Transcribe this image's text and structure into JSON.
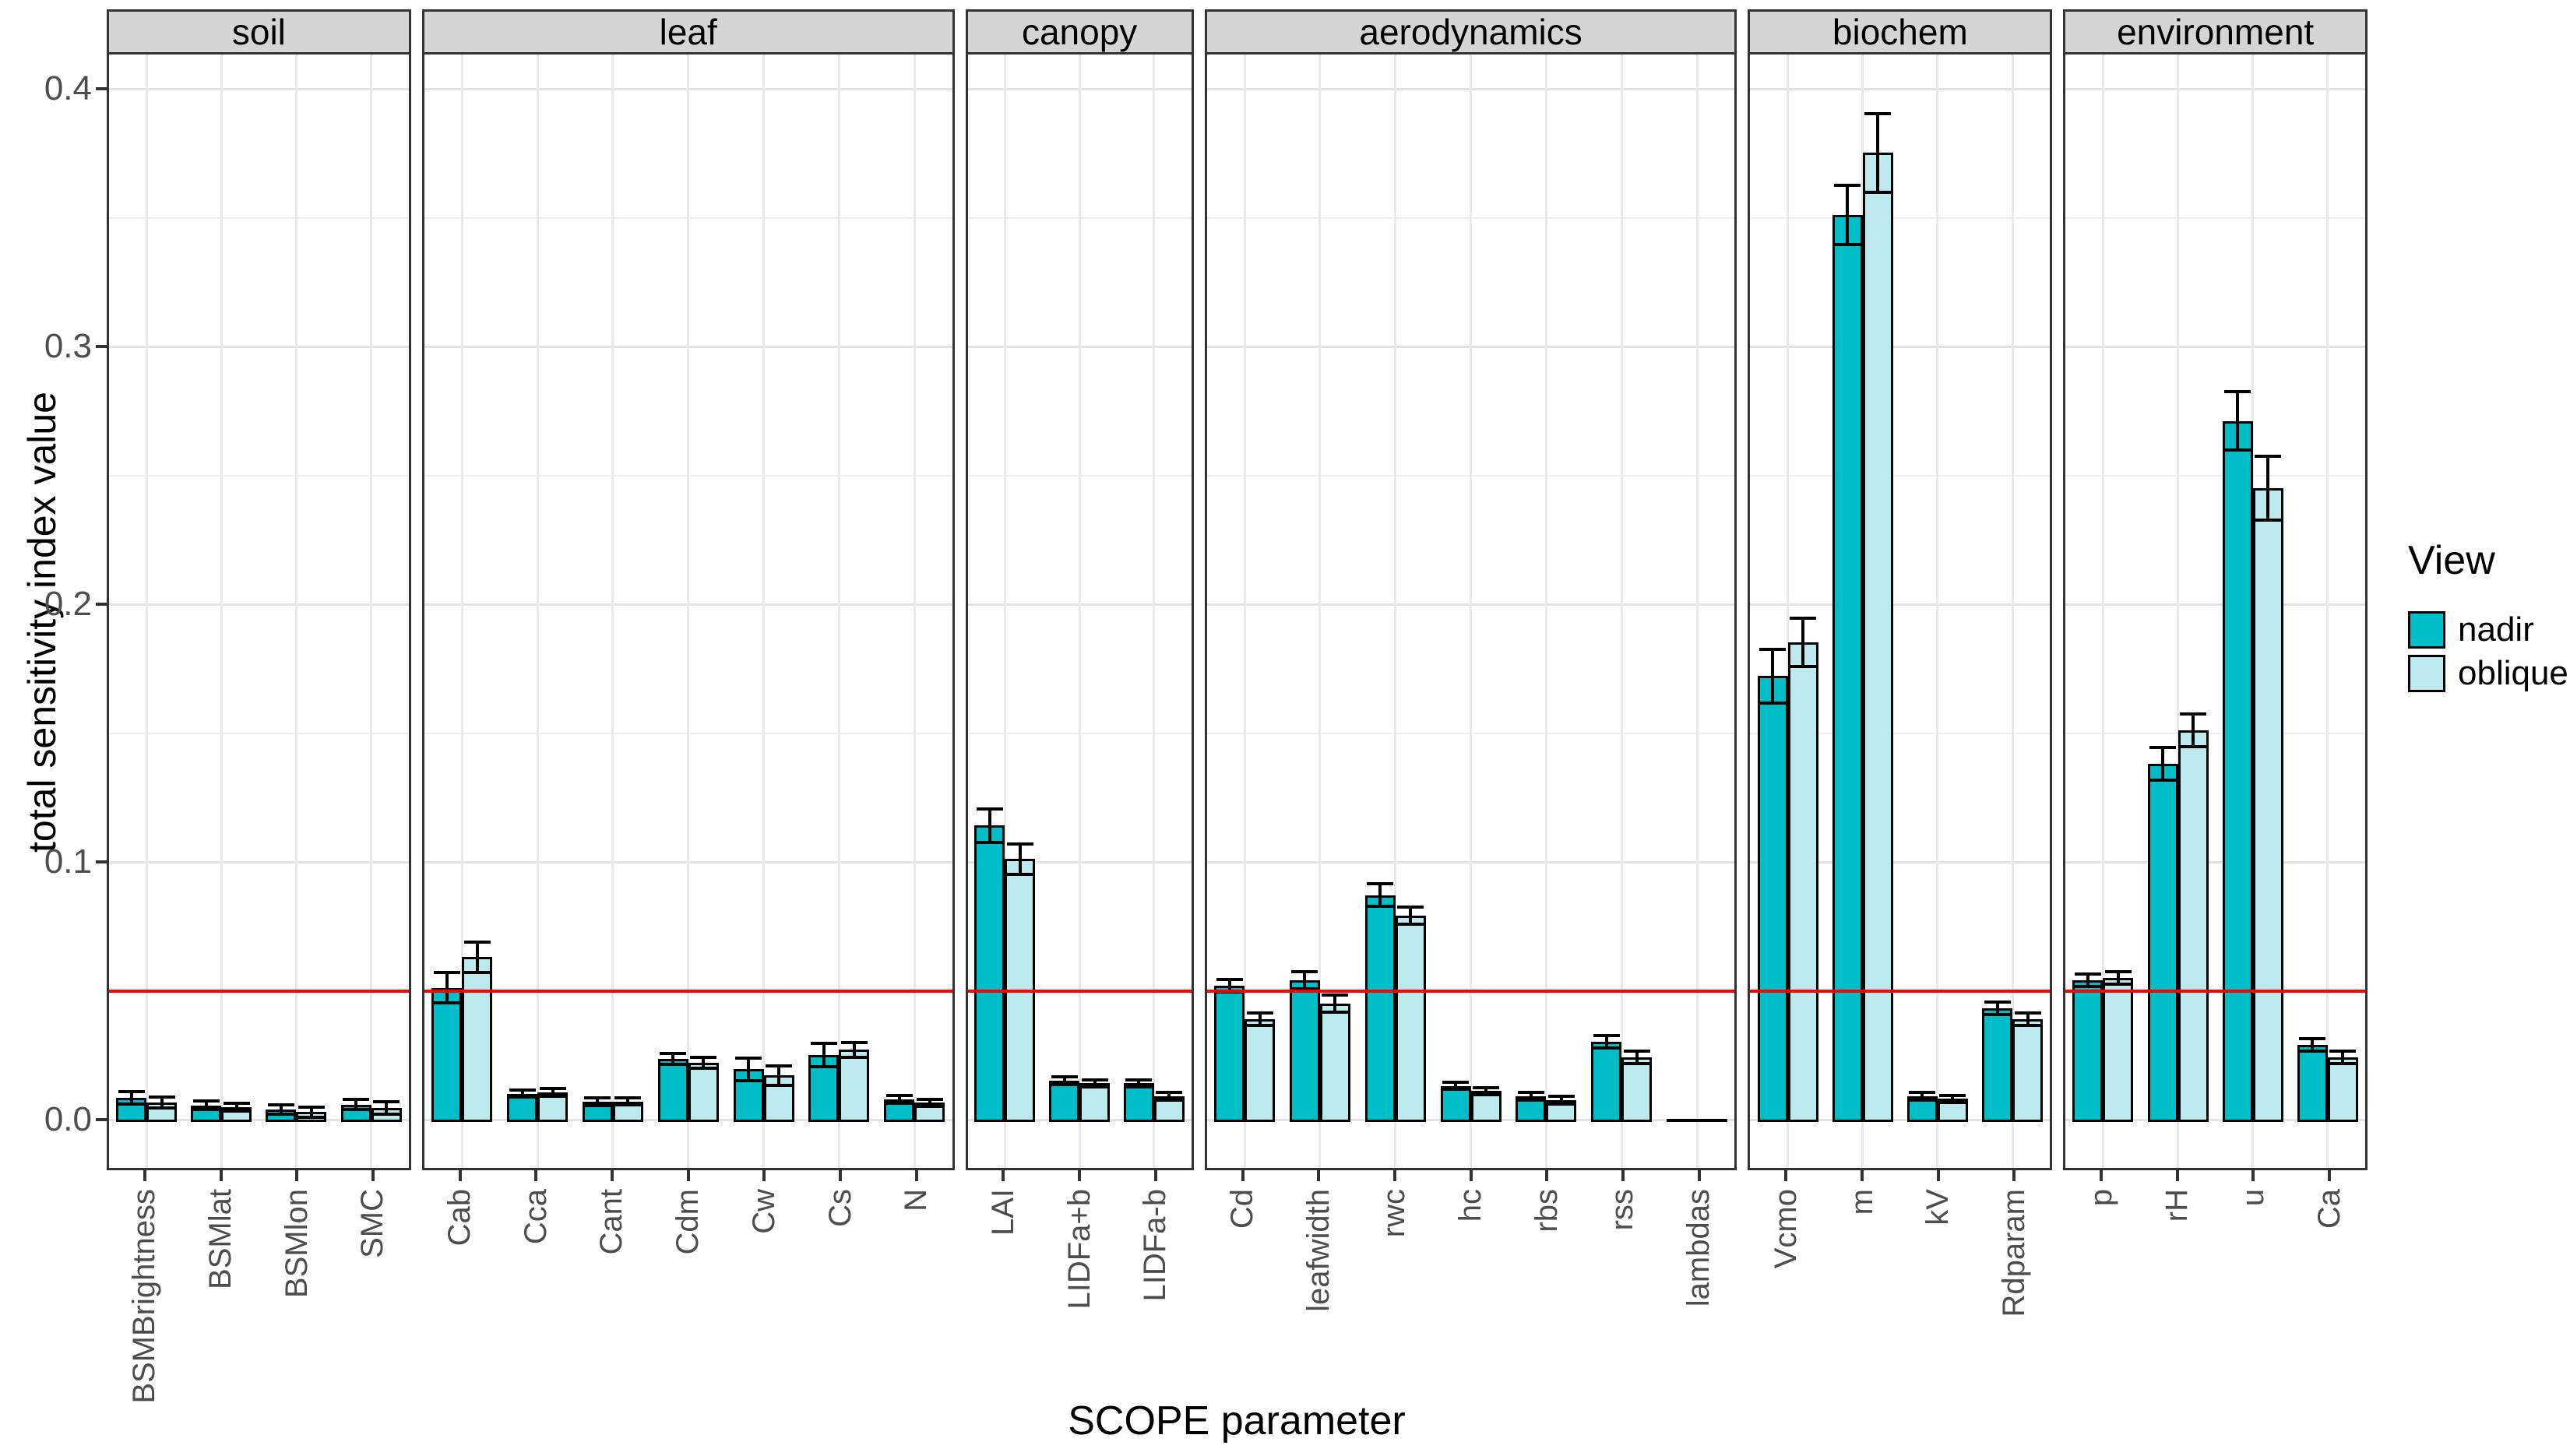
{
  "title_x": "SCOPE parameter",
  "title_y": "total sensitivity index value",
  "legend": {
    "title": "View",
    "entries": [
      {
        "label": "nadir",
        "color": "#00bec8"
      },
      {
        "label": "oblique",
        "color": "#bce9ec"
      }
    ]
  },
  "colors": {
    "nadir": "#00bec8",
    "oblique": "#bce9ec",
    "reference_line": "#ff0000",
    "strip_bg": "#d5d5d5",
    "panel_border": "#333333",
    "axis_text": "#4d4d4d"
  },
  "chart_data": {
    "type": "bar",
    "title": "",
    "xlabel": "SCOPE parameter",
    "ylabel": "total sensitivity index value",
    "legend_position": "right",
    "grid": true,
    "y_ticks": [
      0.0,
      0.1,
      0.2,
      0.3,
      0.4
    ],
    "ylim": [
      -0.02,
      0.413
    ],
    "reference_line": {
      "y": 0.05,
      "color": "#ff0000"
    },
    "series_names": [
      "nadir",
      "oblique"
    ],
    "facets": [
      {
        "label": "soil",
        "categories": [
          "BSMBrightness",
          "BSMlat",
          "BSMlon",
          "SMC"
        ],
        "nadir": [
          0.0095,
          0.0065,
          0.0048,
          0.0067
        ],
        "oblique": [
          0.0075,
          0.0058,
          0.0038,
          0.0055
        ],
        "nadir_err": [
          0.003,
          0.0022,
          0.0025,
          0.0026
        ],
        "oblique_err": [
          0.0028,
          0.0022,
          0.0025,
          0.003
        ]
      },
      {
        "label": "leaf",
        "categories": [
          "Cab",
          "Cca",
          "Cant",
          "Cdm",
          "Cw",
          "Cs",
          "N"
        ],
        "nadir": [
          0.052,
          0.011,
          0.0078,
          0.0245,
          0.0205,
          0.026,
          0.0088
        ],
        "oblique": [
          0.064,
          0.0115,
          0.008,
          0.023,
          0.018,
          0.028,
          0.0075
        ],
        "nadir_err": [
          0.0065,
          0.002,
          0.0022,
          0.0028,
          0.005,
          0.005,
          0.002
        ],
        "oblique_err": [
          0.0065,
          0.002,
          0.002,
          0.0028,
          0.0045,
          0.0035,
          0.002
        ]
      },
      {
        "label": "canopy",
        "categories": [
          "LAI",
          "LIDFa+b",
          "LIDFa-b"
        ],
        "nadir": [
          0.115,
          0.016,
          0.015
        ],
        "oblique": [
          0.102,
          0.015,
          0.01
        ],
        "nadir_err": [
          0.007,
          0.002,
          0.002
        ],
        "oblique_err": [
          0.0065,
          0.002,
          0.002
        ]
      },
      {
        "label": "aerodynamics",
        "categories": [
          "Cd",
          "leafwidth",
          "rwc",
          "hc",
          "rbs",
          "rss",
          "lambdas"
        ],
        "nadir": [
          0.053,
          0.055,
          0.088,
          0.014,
          0.01,
          0.031,
          0.0
        ],
        "oblique": [
          0.04,
          0.046,
          0.08,
          0.012,
          0.0085,
          0.025,
          0.0
        ],
        "nadir_err": [
          0.003,
          0.004,
          0.005,
          0.002,
          0.002,
          0.003,
          0.0
        ],
        "oblique_err": [
          0.003,
          0.004,
          0.004,
          0.002,
          0.002,
          0.003,
          0.0
        ]
      },
      {
        "label": "biochem",
        "categories": [
          "Vcmo",
          "m",
          "kV",
          "Rdparam"
        ],
        "nadir": [
          0.173,
          0.352,
          0.01,
          0.044
        ],
        "oblique": [
          0.186,
          0.376,
          0.009,
          0.04
        ],
        "nadir_err": [
          0.011,
          0.012,
          0.002,
          0.003
        ],
        "oblique_err": [
          0.01,
          0.016,
          0.002,
          0.003
        ]
      },
      {
        "label": "environment",
        "categories": [
          "p",
          "rH",
          "u",
          "Ca"
        ],
        "nadir": [
          0.055,
          0.139,
          0.272,
          0.03
        ],
        "oblique": [
          0.056,
          0.152,
          0.246,
          0.025
        ],
        "nadir_err": [
          0.003,
          0.007,
          0.012,
          0.003
        ],
        "oblique_err": [
          0.003,
          0.007,
          0.013,
          0.003
        ]
      }
    ]
  }
}
